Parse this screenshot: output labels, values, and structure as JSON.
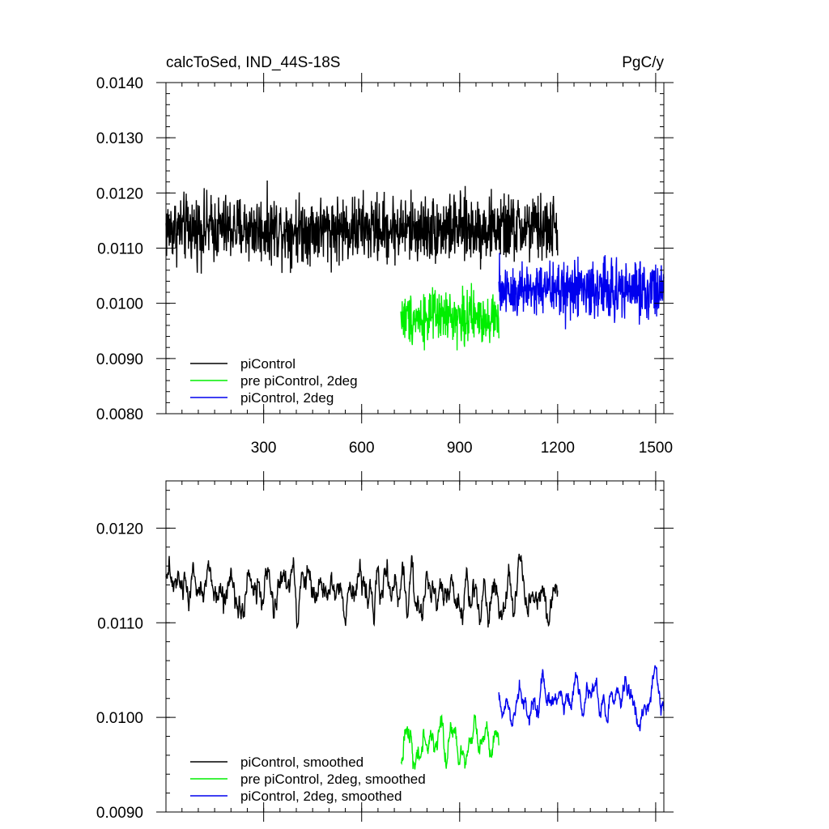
{
  "figure": {
    "title_left": "calcToSed, IND_44S-18S",
    "title_right": "PgC/y",
    "colors": {
      "black": "#000000",
      "green": "#00ee00",
      "blue": "#0000ee"
    }
  },
  "chart_data": [
    {
      "type": "line",
      "title": "calcToSed, IND_44S-18S",
      "units": "PgC/y",
      "xlim": [
        1,
        1525
      ],
      "ylim": [
        0.008,
        0.014
      ],
      "xticks": [
        300,
        600,
        900,
        1200,
        1500
      ],
      "xtick_labels": [
        "300",
        "600",
        "900",
        "1200",
        "1500"
      ],
      "yticks": [
        0.008,
        0.009,
        0.01,
        0.011,
        0.012,
        0.013,
        0.014
      ],
      "ytick_labels": [
        "0.0080",
        "0.0090",
        "0.0100",
        "0.0110",
        "0.0120",
        "0.0130",
        "0.0140"
      ],
      "legend_position": "bottom-left",
      "series": [
        {
          "name": "piControl",
          "color": "#000000",
          "x_start": 1,
          "x_end": 1200,
          "mean": 0.01135,
          "amplitude": 0.0009,
          "smooth": false
        },
        {
          "name": "pre piControl, 2deg",
          "color": "#00ee00",
          "x_start": 720,
          "x_end": 1020,
          "mean": 0.00975,
          "amplitude": 0.0007,
          "smooth": false
        },
        {
          "name": "piControl, 2deg",
          "color": "#0000ee",
          "x_start": 1020,
          "x_end": 1525,
          "mean": 0.01025,
          "amplitude": 0.0008,
          "smooth": false
        }
      ]
    },
    {
      "type": "line",
      "xlim": [
        1,
        1525
      ],
      "ylim": [
        0.009,
        0.0125
      ],
      "xticks": [
        300,
        600,
        900,
        1200,
        1500
      ],
      "yticks": [
        0.009,
        0.01,
        0.011,
        0.012
      ],
      "ytick_labels": [
        "0.0090",
        "0.0100",
        "0.0110",
        "0.0120"
      ],
      "legend_position": "bottom-left",
      "series": [
        {
          "name": "piControl, smoothed",
          "color": "#000000",
          "x_start": 1,
          "x_end": 1200,
          "mean": 0.01135,
          "amplitude": 0.0004,
          "smooth": true
        },
        {
          "name": "pre piControl, 2deg, smoothed",
          "color": "#00ee00",
          "x_start": 720,
          "x_end": 1020,
          "mean": 0.00975,
          "amplitude": 0.0003,
          "smooth": true
        },
        {
          "name": "piControl, 2deg, smoothed",
          "color": "#0000ee",
          "x_start": 1020,
          "x_end": 1525,
          "mean": 0.0102,
          "amplitude": 0.00035,
          "smooth": true
        }
      ]
    }
  ]
}
